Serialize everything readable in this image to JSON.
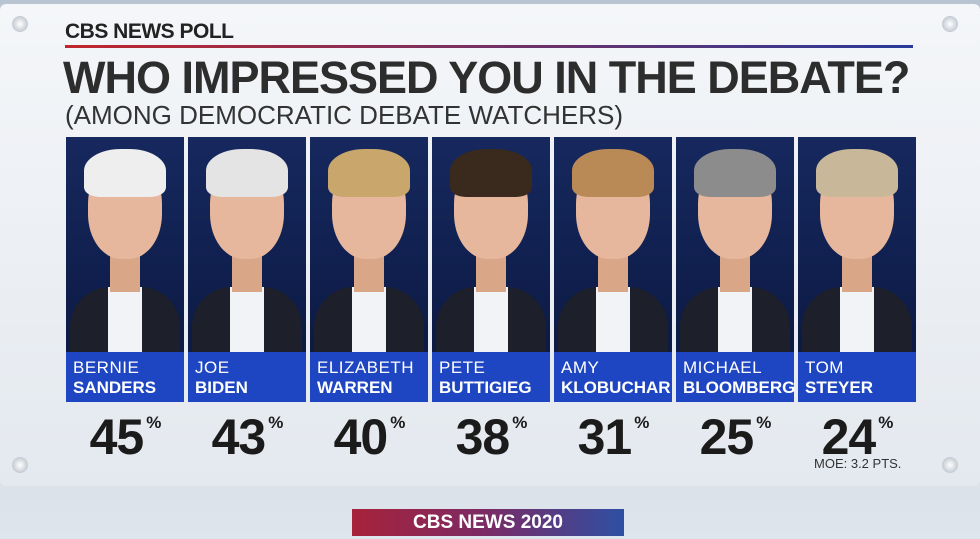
{
  "header": {
    "brand": "CBS NEWS POLL",
    "title": "WHO IMPRESSED YOU IN THE DEBATE?",
    "subtitle": "(AMONG DEMOCRATIC DEBATE WATCHERS)"
  },
  "unit": "%",
  "candidates": [
    {
      "first": "BERNIE",
      "last": "SANDERS",
      "value": 45
    },
    {
      "first": "JOE",
      "last": "BIDEN",
      "value": 43
    },
    {
      "first": "ELIZABETH",
      "last": "WARREN",
      "value": 40
    },
    {
      "first": "PETE",
      "last": "BUTTIGIEG",
      "value": 38
    },
    {
      "first": "AMY",
      "last": "KLOBUCHAR",
      "value": 31
    },
    {
      "first": "MICHAEL",
      "last": "BLOOMBERG",
      "value": 25
    },
    {
      "first": "TOM",
      "last": "STEYER",
      "value": 24
    }
  ],
  "note": "MOE: 3.2 PTS.",
  "footer": "CBS NEWS 2020"
}
